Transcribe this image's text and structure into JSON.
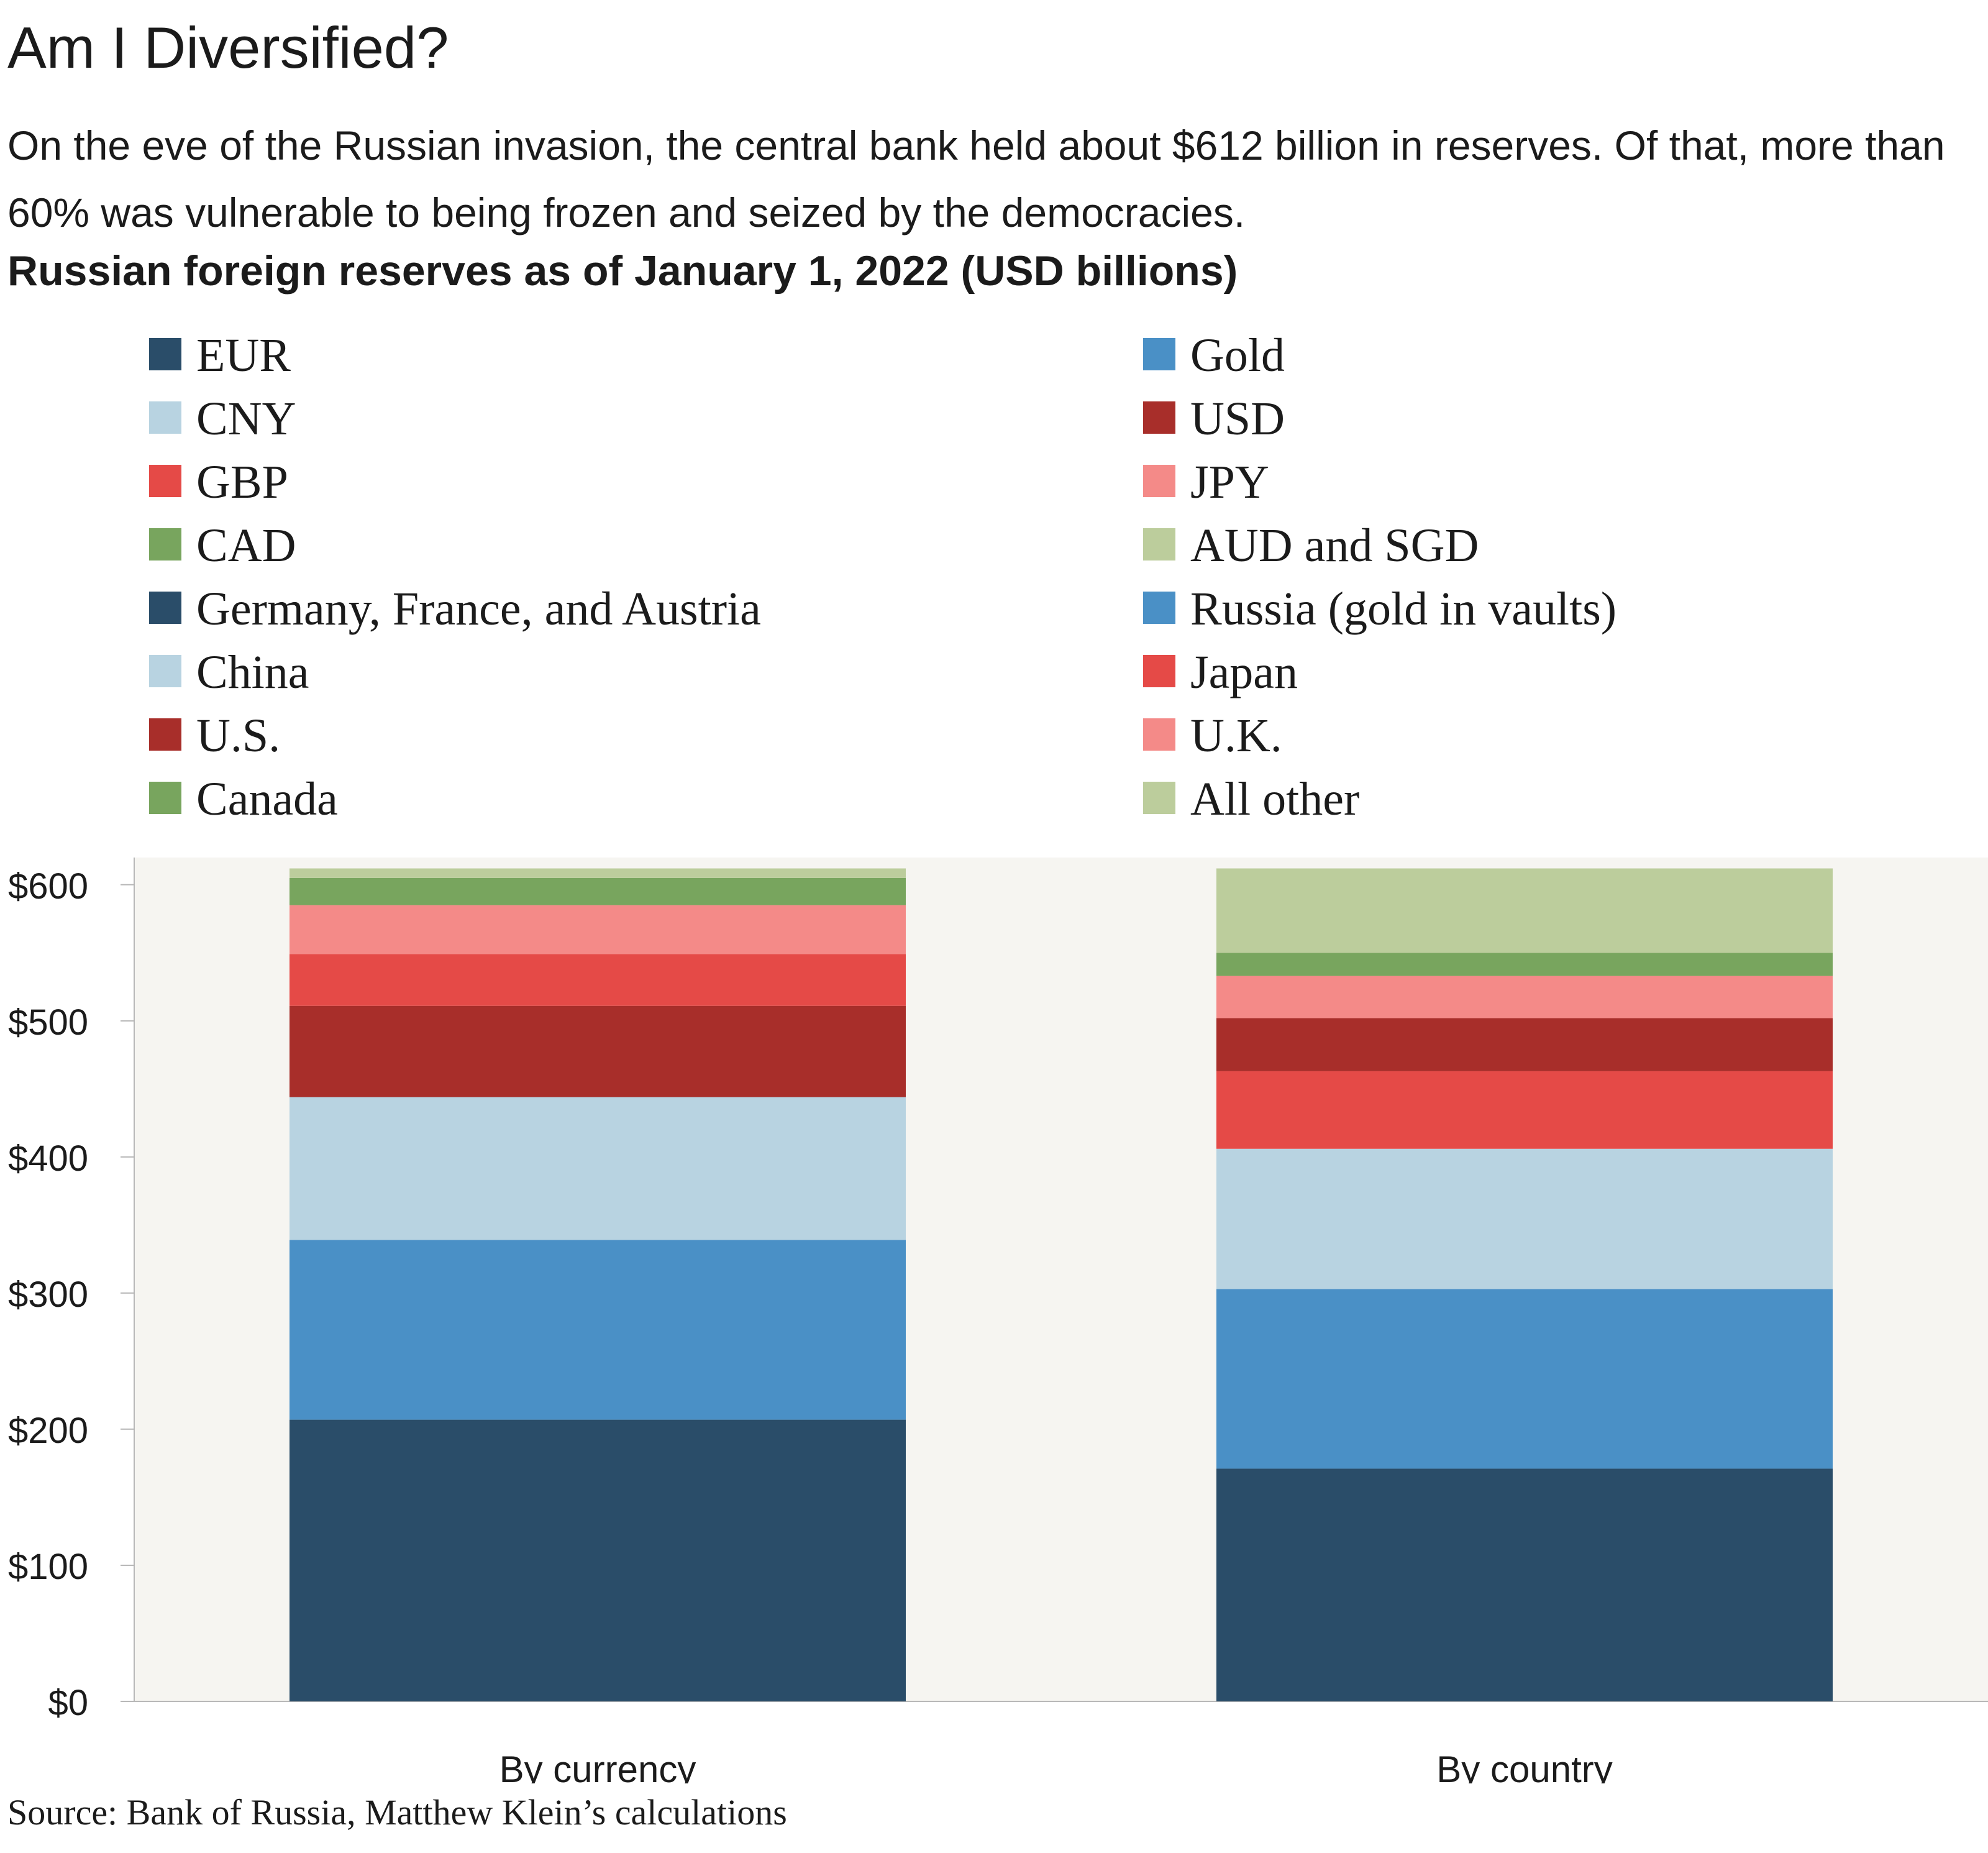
{
  "header": {
    "title": "Am I Diversified?",
    "subtitle": "On the eve of the Russian invasion, the central bank held about $612 billion in reserves. Of that, more than 60% was vulnerable to being frozen and seized by the democracies."
  },
  "chart_data": {
    "type": "bar",
    "stacked": true,
    "title": "Russian foreign reserves as of January 1, 2022 (USD billions)",
    "categories": [
      "By currency",
      "By country"
    ],
    "y_ticks": [
      "$0",
      "$100",
      "$200",
      "$300",
      "$400",
      "$500",
      "$600"
    ],
    "ylim": [
      0,
      620
    ],
    "grid": false,
    "plot_background": "#f6f5f1",
    "legend": [
      {
        "name": "EUR",
        "color": "#2a4d69"
      },
      {
        "name": "Gold",
        "color": "#4a90c6"
      },
      {
        "name": "CNY",
        "color": "#b8d3e1"
      },
      {
        "name": "USD",
        "color": "#a82e2a"
      },
      {
        "name": "GBP",
        "color": "#e54a47"
      },
      {
        "name": "JPY",
        "color": "#f48a88"
      },
      {
        "name": "CAD",
        "color": "#78a55e"
      },
      {
        "name": "AUD and SGD",
        "color": "#bccd9c"
      },
      {
        "name": "Germany, France, and Austria",
        "color": "#2a4d69"
      },
      {
        "name": "Russia (gold in vaults)",
        "color": "#4a90c6"
      },
      {
        "name": "China",
        "color": "#b8d3e1"
      },
      {
        "name": "Japan",
        "color": "#e54a47"
      },
      {
        "name": "U.S.",
        "color": "#a82e2a"
      },
      {
        "name": "U.K.",
        "color": "#f48a88"
      },
      {
        "name": "Canada",
        "color": "#78a55e"
      },
      {
        "name": "All other",
        "color": "#bccd9c"
      }
    ],
    "stacks": [
      {
        "category": "By currency",
        "segments": [
          {
            "name": "EUR",
            "value": 207,
            "color": "#2a4d69"
          },
          {
            "name": "Gold",
            "value": 132,
            "color": "#4a90c6"
          },
          {
            "name": "CNY",
            "value": 105,
            "color": "#b8d3e1"
          },
          {
            "name": "USD",
            "value": 67,
            "color": "#a82e2a"
          },
          {
            "name": "GBP",
            "value": 38,
            "color": "#e54a47"
          },
          {
            "name": "JPY",
            "value": 36,
            "color": "#f48a88"
          },
          {
            "name": "CAD",
            "value": 20,
            "color": "#78a55e"
          },
          {
            "name": "AUD and SGD",
            "value": 7,
            "color": "#bccd9c"
          }
        ]
      },
      {
        "category": "By country",
        "segments": [
          {
            "name": "Germany, France, and Austria",
            "value": 171,
            "color": "#2a4d69"
          },
          {
            "name": "Russia (gold in vaults)",
            "value": 132,
            "color": "#4a90c6"
          },
          {
            "name": "China",
            "value": 103,
            "color": "#b8d3e1"
          },
          {
            "name": "Japan",
            "value": 57,
            "color": "#e54a47"
          },
          {
            "name": "U.S.",
            "value": 39,
            "color": "#a82e2a"
          },
          {
            "name": "U.K.",
            "value": 31,
            "color": "#f48a88"
          },
          {
            "name": "Canada",
            "value": 17,
            "color": "#78a55e"
          },
          {
            "name": "All other",
            "value": 62,
            "color": "#bccd9c"
          }
        ]
      }
    ]
  },
  "footer": {
    "source": "Source: Bank of Russia, Matthew Klein’s calculations"
  }
}
